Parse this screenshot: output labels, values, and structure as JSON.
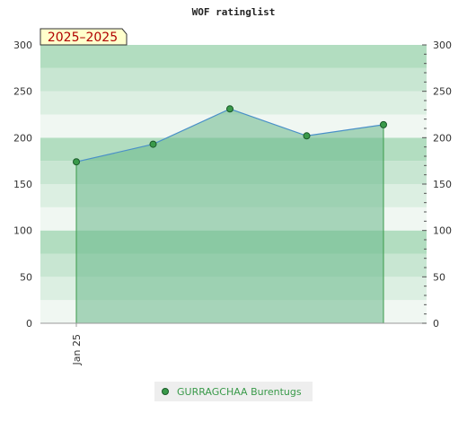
{
  "chart_data": {
    "type": "area",
    "title": "WOF ratinglist",
    "date_range_label": "2025–2025",
    "x_tick_labels": [
      "Jan 25"
    ],
    "y_ticks": [
      0,
      50,
      100,
      150,
      200,
      250,
      300
    ],
    "ylim": [
      0,
      300
    ],
    "y_axis_both_sides": true,
    "grid": true,
    "legend_position": "bottom-center",
    "series": [
      {
        "name": "GURRAGCHAA Burentugs",
        "values": [
          174,
          193,
          231,
          202,
          214
        ],
        "line_color": "#4a90c8",
        "fill_color": "#6ab88a",
        "marker_color": "#3a9a4a"
      }
    ],
    "band_colors": [
      "#f0f7f2",
      "#dcefe2",
      "#c8e6d2",
      "#b2ddc0"
    ]
  }
}
